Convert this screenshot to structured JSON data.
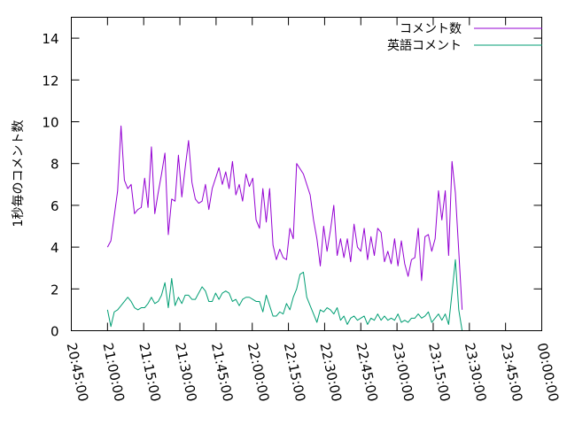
{
  "chart_data": {
    "type": "line",
    "title": "",
    "xlabel": "",
    "ylabel": "1秒毎のコメント数",
    "ylim": [
      0,
      15
    ],
    "xlim": [
      "20:45:00",
      "00:00:00"
    ],
    "y_ticks": [
      "0",
      "2",
      "4",
      "6",
      "8",
      "10",
      "12",
      "14"
    ],
    "x_ticks": [
      "20:45:00",
      "21:00:00",
      "21:15:00",
      "21:30:00",
      "21:45:00",
      "22:00:00",
      "22:15:00",
      "22:30:00",
      "22:45:00",
      "23:00:00",
      "23:15:00",
      "23:30:00",
      "23:45:00",
      "00:00:00"
    ],
    "grid": false,
    "legend_position": "top-right",
    "series": [
      {
        "name": "コメント数",
        "color": "#9400d3",
        "points": [
          [
            "21:00:00",
            4.0
          ],
          [
            "21:01:24",
            4.3
          ],
          [
            "21:04:12",
            6.7
          ],
          [
            "21:05:36",
            9.8
          ],
          [
            "21:07:00",
            7.2
          ],
          [
            "21:08:24",
            6.8
          ],
          [
            "21:09:48",
            7.0
          ],
          [
            "21:11:12",
            5.6
          ],
          [
            "21:12:36",
            5.8
          ],
          [
            "21:14:00",
            5.9
          ],
          [
            "21:15:24",
            7.3
          ],
          [
            "21:16:48",
            5.9
          ],
          [
            "21:18:12",
            8.8
          ],
          [
            "21:19:36",
            5.6
          ],
          [
            "21:21:00",
            6.6
          ],
          [
            "21:22:24",
            7.5
          ],
          [
            "21:23:48",
            8.5
          ],
          [
            "21:25:12",
            4.6
          ],
          [
            "21:26:36",
            6.3
          ],
          [
            "21:28:00",
            6.2
          ],
          [
            "21:29:24",
            8.4
          ],
          [
            "21:30:48",
            6.4
          ],
          [
            "21:32:12",
            7.8
          ],
          [
            "21:33:36",
            9.1
          ],
          [
            "21:35:00",
            7.1
          ],
          [
            "21:36:24",
            6.3
          ],
          [
            "21:37:48",
            6.1
          ],
          [
            "21:39:12",
            6.2
          ],
          [
            "21:40:36",
            7.0
          ],
          [
            "21:42:00",
            5.8
          ],
          [
            "21:43:24",
            6.8
          ],
          [
            "21:46:12",
            7.8
          ],
          [
            "21:47:36",
            7.0
          ],
          [
            "21:49:00",
            7.6
          ],
          [
            "21:50:24",
            6.8
          ],
          [
            "21:51:48",
            8.1
          ],
          [
            "21:53:12",
            6.5
          ],
          [
            "21:54:36",
            7.0
          ],
          [
            "21:56:00",
            6.2
          ],
          [
            "21:57:24",
            7.5
          ],
          [
            "21:58:48",
            6.9
          ],
          [
            "22:00:12",
            7.3
          ],
          [
            "22:01:36",
            5.3
          ],
          [
            "22:03:00",
            4.9
          ],
          [
            "22:04:24",
            6.8
          ],
          [
            "22:05:48",
            5.2
          ],
          [
            "22:07:12",
            6.8
          ],
          [
            "22:08:36",
            4.1
          ],
          [
            "22:10:00",
            3.4
          ],
          [
            "22:11:24",
            3.9
          ],
          [
            "22:12:48",
            3.5
          ],
          [
            "22:14:12",
            3.4
          ],
          [
            "22:15:36",
            4.9
          ],
          [
            "22:17:00",
            4.4
          ],
          [
            "22:18:24",
            8.0
          ],
          [
            "22:21:12",
            7.5
          ],
          [
            "22:24:00",
            6.5
          ],
          [
            "22:25:24",
            5.3
          ],
          [
            "22:26:48",
            4.4
          ],
          [
            "22:28:12",
            3.1
          ],
          [
            "22:29:36",
            5.0
          ],
          [
            "22:31:00",
            3.8
          ],
          [
            "22:32:24",
            4.8
          ],
          [
            "22:33:48",
            6.0
          ],
          [
            "22:35:12",
            3.6
          ],
          [
            "22:36:36",
            4.4
          ],
          [
            "22:38:00",
            3.5
          ],
          [
            "22:39:24",
            4.4
          ],
          [
            "22:40:48",
            3.3
          ],
          [
            "22:42:12",
            5.1
          ],
          [
            "22:43:36",
            4.0
          ],
          [
            "22:45:00",
            3.8
          ],
          [
            "22:46:24",
            4.9
          ],
          [
            "22:47:48",
            3.4
          ],
          [
            "22:49:12",
            4.5
          ],
          [
            "22:50:36",
            3.6
          ],
          [
            "22:52:00",
            4.9
          ],
          [
            "22:53:24",
            4.7
          ],
          [
            "22:54:48",
            3.3
          ],
          [
            "22:56:12",
            3.8
          ],
          [
            "22:57:36",
            3.2
          ],
          [
            "22:59:00",
            4.4
          ],
          [
            "23:00:24",
            3.1
          ],
          [
            "23:01:48",
            4.3
          ],
          [
            "23:03:12",
            3.2
          ],
          [
            "23:04:36",
            2.6
          ],
          [
            "23:06:00",
            3.4
          ],
          [
            "23:07:24",
            3.5
          ],
          [
            "23:08:48",
            4.9
          ],
          [
            "23:10:12",
            2.4
          ],
          [
            "23:11:36",
            4.5
          ],
          [
            "23:13:00",
            4.6
          ],
          [
            "23:14:24",
            3.8
          ],
          [
            "23:15:48",
            4.4
          ],
          [
            "23:17:12",
            6.7
          ],
          [
            "23:18:36",
            5.3
          ],
          [
            "23:20:00",
            6.7
          ],
          [
            "23:21:24",
            3.6
          ],
          [
            "23:22:48",
            8.1
          ],
          [
            "23:24:12",
            6.6
          ],
          [
            "23:27:00",
            1.0
          ]
        ]
      },
      {
        "name": "英語コメント",
        "color": "#009e73",
        "points": [
          [
            "21:00:00",
            1.0
          ],
          [
            "21:01:24",
            0.2
          ],
          [
            "21:02:48",
            0.9
          ],
          [
            "21:04:12",
            1.0
          ],
          [
            "21:07:00",
            1.4
          ],
          [
            "21:08:24",
            1.6
          ],
          [
            "21:09:48",
            1.4
          ],
          [
            "21:11:12",
            1.1
          ],
          [
            "21:12:36",
            1.0
          ],
          [
            "21:14:00",
            1.1
          ],
          [
            "21:15:24",
            1.1
          ],
          [
            "21:16:48",
            1.3
          ],
          [
            "21:18:12",
            1.6
          ],
          [
            "21:19:36",
            1.3
          ],
          [
            "21:21:00",
            1.4
          ],
          [
            "21:22:24",
            1.7
          ],
          [
            "21:23:48",
            2.3
          ],
          [
            "21:25:12",
            1.1
          ],
          [
            "21:26:36",
            2.5
          ],
          [
            "21:28:00",
            1.2
          ],
          [
            "21:29:24",
            1.6
          ],
          [
            "21:30:48",
            1.3
          ],
          [
            "21:32:12",
            1.7
          ],
          [
            "21:33:36",
            1.7
          ],
          [
            "21:35:00",
            1.5
          ],
          [
            "21:36:24",
            1.5
          ],
          [
            "21:37:48",
            1.8
          ],
          [
            "21:39:12",
            2.1
          ],
          [
            "21:40:36",
            1.9
          ],
          [
            "21:42:00",
            1.4
          ],
          [
            "21:43:24",
            1.4
          ],
          [
            "21:44:48",
            1.8
          ],
          [
            "21:46:12",
            1.5
          ],
          [
            "21:47:36",
            1.8
          ],
          [
            "21:49:00",
            1.9
          ],
          [
            "21:50:24",
            1.8
          ],
          [
            "21:51:48",
            1.4
          ],
          [
            "21:53:12",
            1.5
          ],
          [
            "21:54:36",
            1.2
          ],
          [
            "21:56:00",
            1.5
          ],
          [
            "21:57:24",
            1.6
          ],
          [
            "21:58:48",
            1.6
          ],
          [
            "22:00:12",
            1.5
          ],
          [
            "22:01:36",
            1.4
          ],
          [
            "22:03:00",
            1.4
          ],
          [
            "22:04:24",
            0.9
          ],
          [
            "22:05:48",
            1.7
          ],
          [
            "22:07:12",
            1.2
          ],
          [
            "22:08:36",
            0.7
          ],
          [
            "22:10:00",
            0.7
          ],
          [
            "22:11:24",
            0.9
          ],
          [
            "22:12:48",
            0.8
          ],
          [
            "22:14:12",
            1.3
          ],
          [
            "22:15:36",
            1.0
          ],
          [
            "22:17:00",
            1.6
          ],
          [
            "22:18:24",
            2.0
          ],
          [
            "22:19:48",
            2.7
          ],
          [
            "22:21:12",
            2.8
          ],
          [
            "22:22:36",
            1.6
          ],
          [
            "22:24:00",
            1.2
          ],
          [
            "22:25:24",
            0.8
          ],
          [
            "22:26:48",
            0.4
          ],
          [
            "22:28:12",
            1.0
          ],
          [
            "22:29:36",
            0.9
          ],
          [
            "22:31:00",
            1.1
          ],
          [
            "22:32:24",
            1.0
          ],
          [
            "22:33:48",
            0.8
          ],
          [
            "22:35:12",
            1.1
          ],
          [
            "22:36:36",
            0.5
          ],
          [
            "22:38:00",
            0.7
          ],
          [
            "22:39:24",
            0.3
          ],
          [
            "22:40:48",
            0.6
          ],
          [
            "22:42:12",
            0.7
          ],
          [
            "22:43:36",
            0.5
          ],
          [
            "22:45:00",
            0.6
          ],
          [
            "22:46:24",
            0.7
          ],
          [
            "22:47:48",
            0.3
          ],
          [
            "22:49:12",
            0.6
          ],
          [
            "22:50:36",
            0.5
          ],
          [
            "22:52:00",
            0.8
          ],
          [
            "22:53:24",
            0.5
          ],
          [
            "22:54:48",
            0.7
          ],
          [
            "22:56:12",
            0.5
          ],
          [
            "22:57:36",
            0.6
          ],
          [
            "22:59:00",
            0.5
          ],
          [
            "23:00:24",
            0.8
          ],
          [
            "23:01:48",
            0.4
          ],
          [
            "23:03:12",
            0.5
          ],
          [
            "23:04:36",
            0.4
          ],
          [
            "23:06:00",
            0.6
          ],
          [
            "23:07:24",
            0.6
          ],
          [
            "23:08:48",
            0.8
          ],
          [
            "23:10:12",
            0.6
          ],
          [
            "23:11:36",
            0.7
          ],
          [
            "23:13:00",
            0.9
          ],
          [
            "23:14:24",
            0.4
          ],
          [
            "23:15:48",
            0.6
          ],
          [
            "23:17:12",
            0.8
          ],
          [
            "23:18:36",
            0.5
          ],
          [
            "23:20:00",
            0.8
          ],
          [
            "23:21:24",
            0.3
          ],
          [
            "23:22:48",
            1.8
          ],
          [
            "23:24:12",
            3.4
          ],
          [
            "23:25:36",
            1.0
          ],
          [
            "23:27:00",
            0.0
          ]
        ]
      }
    ]
  }
}
